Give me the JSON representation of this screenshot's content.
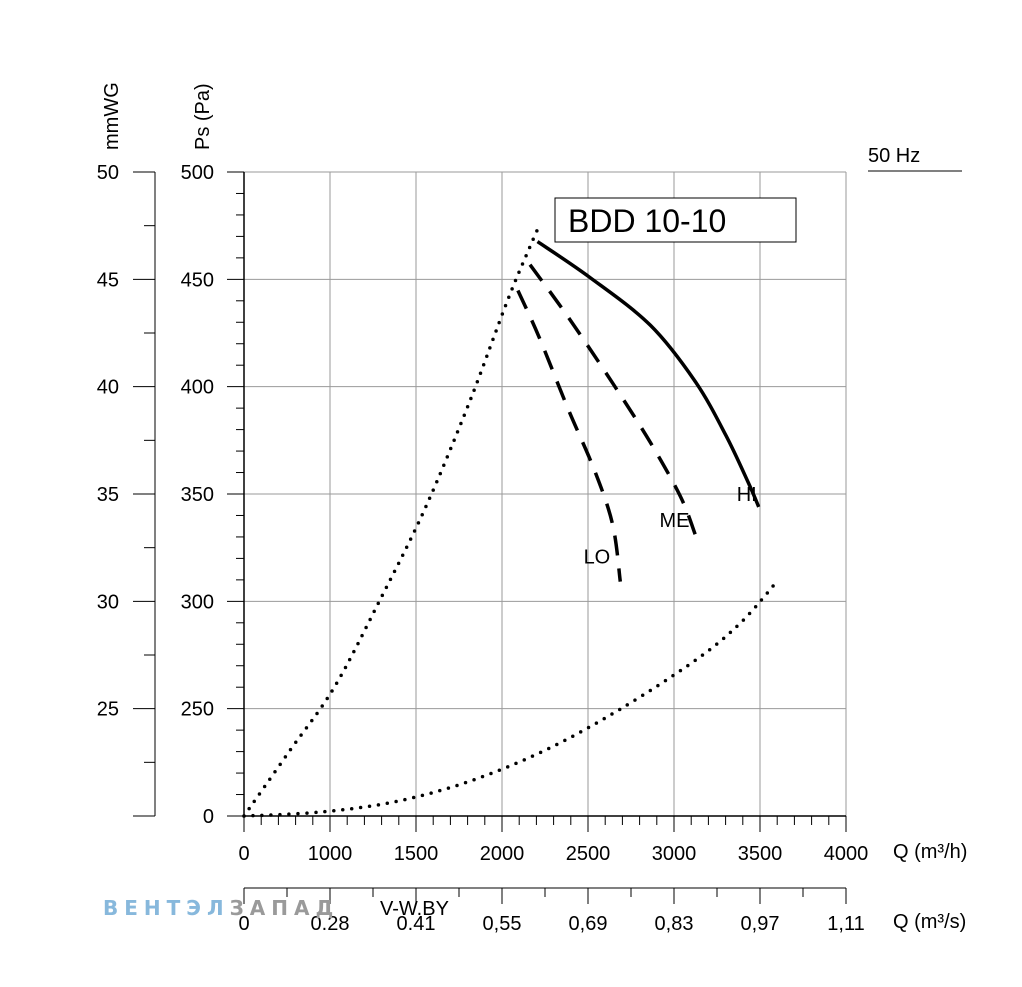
{
  "chart_data": {
    "type": "line",
    "title": "BDD 10-10",
    "frequency_label": "50 Hz",
    "y_axis_pa": {
      "label": "Ps (Pa)",
      "range": [
        0,
        500
      ],
      "ticks": [
        0,
        250,
        300,
        350,
        400,
        450,
        500
      ]
    },
    "y_axis_mmwg": {
      "label": "mmWG",
      "ticks": [
        25,
        30,
        35,
        40,
        45,
        50
      ]
    },
    "x_axis_m3h": {
      "label": "Q (m³/h)",
      "range": [
        0,
        4000
      ],
      "ticks": [
        0,
        1000,
        1500,
        2000,
        2500,
        3000,
        3500,
        4000
      ]
    },
    "x_axis_m3s": {
      "label": "Q (m³/s)",
      "tick_labels": [
        "0",
        "0.28",
        "0.41",
        "0,55",
        "0,69",
        "0,83",
        "0,97",
        "1,11"
      ]
    },
    "series": [
      {
        "name": "HI",
        "style": "solid",
        "points": [
          [
            1950,
            446
          ],
          [
            2300,
            418
          ],
          [
            2700,
            381
          ],
          [
            3000,
            337
          ],
          [
            3200,
            296
          ],
          [
            3350,
            259
          ],
          [
            3420,
            240
          ]
        ]
      },
      {
        "name": "ME",
        "style": "dashed",
        "points": [
          [
            1900,
            428
          ],
          [
            2150,
            388
          ],
          [
            2450,
            336
          ],
          [
            2700,
            290
          ],
          [
            2900,
            248
          ],
          [
            3000,
            218
          ]
        ]
      },
      {
        "name": "LO",
        "style": "dashed",
        "points": [
          [
            1820,
            408
          ],
          [
            1960,
            372
          ],
          [
            2150,
            317
          ],
          [
            2330,
            268
          ],
          [
            2450,
            226
          ],
          [
            2500,
            182
          ]
        ]
      }
    ],
    "limit_curves": [
      {
        "style": "dotted",
        "points": [
          [
            0,
            0
          ],
          [
            300,
            50
          ],
          [
            600,
            100
          ],
          [
            900,
            167
          ],
          [
            1200,
            238
          ],
          [
            1500,
            322
          ],
          [
            1750,
            400
          ],
          [
            1900,
            442
          ],
          [
            1960,
            458
          ]
        ]
      },
      {
        "style": "dotted",
        "points": [
          [
            0,
            0
          ],
          [
            500,
            3
          ],
          [
            1000,
            11
          ],
          [
            1500,
            27
          ],
          [
            2000,
            51
          ],
          [
            2500,
            83
          ],
          [
            3000,
            121
          ],
          [
            3300,
            150
          ],
          [
            3540,
            182
          ]
        ]
      }
    ],
    "watermark": {
      "brand_part1": "ВЕНТЭЛ",
      "brand_part2": "ЗАПАД",
      "site": "V-W.BY",
      "color1": "#87b8dc",
      "color2": "#9a9a9a"
    }
  }
}
